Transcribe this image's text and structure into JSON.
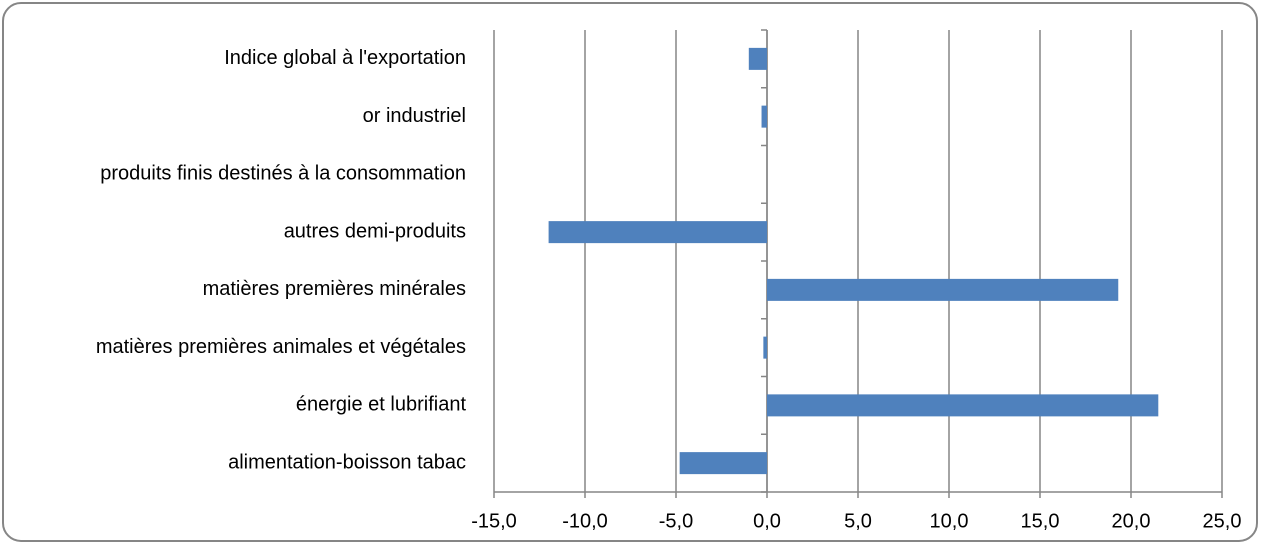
{
  "chart_data": {
    "type": "bar",
    "orientation": "horizontal",
    "categories": [
      "Indice global à l'exportation",
      "or industriel",
      "produits finis destinés à la consommation",
      "autres demi-produits",
      "matières premières minérales",
      "matières premières animales et végétales",
      "énergie et lubrifiant",
      "alimentation-boisson tabac"
    ],
    "values": [
      -1.0,
      -0.3,
      0,
      -12.0,
      19.3,
      -0.2,
      21.5,
      -4.8
    ],
    "color": "#4f81bd",
    "xlim": [
      -15,
      25
    ],
    "xticks": [
      {
        "value": -15,
        "label": "-15,0"
      },
      {
        "value": -10,
        "label": "-10,0"
      },
      {
        "value": -5,
        "label": "-5,0"
      },
      {
        "value": 0,
        "label": "0,0"
      },
      {
        "value": 5,
        "label": "5,0"
      },
      {
        "value": 10,
        "label": "10,0"
      },
      {
        "value": 15,
        "label": "15,0"
      },
      {
        "value": 20,
        "label": "20,0"
      },
      {
        "value": 25,
        "label": "25,0"
      }
    ],
    "grid": true
  }
}
